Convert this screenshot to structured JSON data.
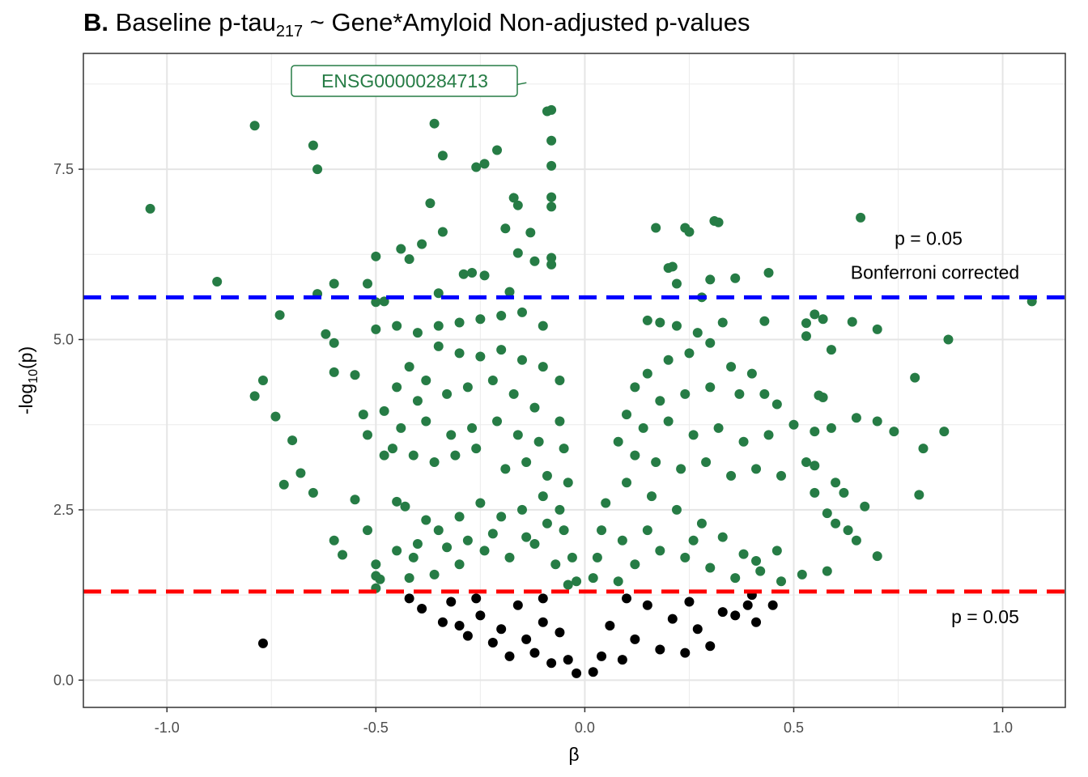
{
  "chart_data": {
    "type": "scatter",
    "title": {
      "prefix": "B.",
      "main": "Baseline p-tau",
      "subscript": "217",
      "rest": " ~ Gene*Amyloid Non-adjusted p-values"
    },
    "xlabel": "β",
    "ylabel": {
      "main": "-log",
      "subscript": "10",
      "rest": "(p)"
    },
    "xlim": [
      -1.2,
      1.15
    ],
    "ylim": [
      -0.4,
      9.2
    ],
    "xticks": [
      -1.0,
      -0.5,
      0.0,
      0.5,
      1.0
    ],
    "xtick_labels": [
      "-1.0",
      "-0.5",
      "0.0",
      "0.5",
      "1.0"
    ],
    "yticks": [
      0.0,
      2.5,
      5.0,
      7.5
    ],
    "ytick_labels": [
      "0.0",
      "2.5",
      "5.0",
      "7.5"
    ],
    "grid": true,
    "colors": {
      "significant": "#267c45",
      "nonsignificant": "#000000",
      "bonferroni_line": "#0000ff",
      "nominal_line": "#ff0000",
      "label_text": "#267c45"
    },
    "reference_lines": [
      {
        "y": 5.62,
        "color": "#0000ff",
        "style": "dashed",
        "label_lines": [
          "p = 0.05",
          "Bonferroni corrected"
        ]
      },
      {
        "y": 1.3,
        "color": "#ff0000",
        "style": "dashed",
        "label_lines": [
          "p = 0.05"
        ]
      }
    ],
    "highlighted_point": {
      "label": "ENSG00000284713",
      "x": -0.13,
      "y": 8.77
    },
    "series": [
      {
        "values": [
          [
            -1.04,
            6.92
          ],
          [
            -0.79,
            8.14
          ],
          [
            -0.88,
            5.85
          ],
          [
            -0.65,
            7.85
          ],
          [
            -0.64,
            7.5
          ],
          [
            -0.36,
            8.17
          ],
          [
            -0.34,
            7.7
          ],
          [
            -0.26,
            7.53
          ],
          [
            -0.24,
            7.58
          ],
          [
            -0.21,
            7.78
          ],
          [
            -0.09,
            8.35
          ],
          [
            -0.08,
            8.37
          ],
          [
            -0.08,
            7.92
          ],
          [
            -0.08,
            7.55
          ],
          [
            -0.17,
            7.08
          ],
          [
            -0.08,
            7.09
          ],
          [
            -0.16,
            6.97
          ],
          [
            -0.37,
            7.0
          ],
          [
            -0.08,
            6.95
          ],
          [
            -0.34,
            6.58
          ],
          [
            -0.19,
            6.63
          ],
          [
            -0.13,
            6.57
          ],
          [
            -0.39,
            6.4
          ],
          [
            -0.44,
            6.33
          ],
          [
            -0.5,
            6.22
          ],
          [
            -0.42,
            6.18
          ],
          [
            -0.16,
            6.27
          ],
          [
            -0.12,
            6.15
          ],
          [
            -0.08,
            6.2
          ],
          [
            -0.08,
            6.1
          ],
          [
            -0.29,
            5.96
          ],
          [
            -0.27,
            5.98
          ],
          [
            -0.24,
            5.94
          ],
          [
            -0.52,
            5.82
          ],
          [
            -0.6,
            5.82
          ],
          [
            -0.64,
            5.67
          ],
          [
            -0.35,
            5.68
          ],
          [
            -0.18,
            5.7
          ],
          [
            -0.5,
            5.55
          ],
          [
            -0.48,
            5.56
          ],
          [
            -0.73,
            5.36
          ],
          [
            0.17,
            6.64
          ],
          [
            0.24,
            6.64
          ],
          [
            0.25,
            6.58
          ],
          [
            0.31,
            6.74
          ],
          [
            0.32,
            6.72
          ],
          [
            0.66,
            6.79
          ],
          [
            0.2,
            6.05
          ],
          [
            0.21,
            6.07
          ],
          [
            0.44,
            5.98
          ],
          [
            0.3,
            5.88
          ],
          [
            0.36,
            5.9
          ],
          [
            0.22,
            5.82
          ],
          [
            0.28,
            5.62
          ],
          [
            1.07,
            5.56
          ],
          [
            -0.77,
            4.4
          ],
          [
            -0.79,
            4.17
          ],
          [
            -0.74,
            3.87
          ],
          [
            -0.6,
            4.52
          ],
          [
            -0.7,
            3.52
          ],
          [
            -0.68,
            3.04
          ],
          [
            -0.72,
            2.87
          ],
          [
            -0.65,
            2.75
          ],
          [
            -0.55,
            2.65
          ],
          [
            -0.52,
            2.2
          ],
          [
            -0.6,
            2.05
          ],
          [
            -0.58,
            1.84
          ],
          [
            -0.5,
            1.53
          ],
          [
            -0.49,
            1.48
          ],
          [
            -0.5,
            1.35
          ],
          [
            -0.41,
            1.8
          ],
          [
            -0.45,
            2.62
          ],
          [
            -0.48,
            3.3
          ],
          [
            -0.53,
            3.9
          ],
          [
            -0.55,
            4.48
          ],
          [
            -0.6,
            4.95
          ],
          [
            -0.62,
            5.08
          ],
          [
            -0.5,
            5.15
          ],
          [
            -0.45,
            5.2
          ],
          [
            -0.4,
            5.1
          ],
          [
            -0.35,
            5.2
          ],
          [
            -0.3,
            5.25
          ],
          [
            -0.25,
            5.3
          ],
          [
            -0.2,
            5.35
          ],
          [
            -0.15,
            5.4
          ],
          [
            -0.1,
            5.2
          ],
          [
            -0.35,
            4.9
          ],
          [
            -0.3,
            4.8
          ],
          [
            -0.25,
            4.75
          ],
          [
            -0.2,
            4.85
          ],
          [
            -0.15,
            4.7
          ],
          [
            -0.1,
            4.6
          ],
          [
            -0.06,
            4.4
          ],
          [
            -0.42,
            4.6
          ],
          [
            -0.38,
            4.4
          ],
          [
            -0.45,
            4.3
          ],
          [
            -0.4,
            4.1
          ],
          [
            -0.33,
            4.2
          ],
          [
            -0.28,
            4.3
          ],
          [
            -0.22,
            4.4
          ],
          [
            -0.17,
            4.2
          ],
          [
            -0.12,
            4.0
          ],
          [
            -0.06,
            3.8
          ],
          [
            -0.48,
            3.95
          ],
          [
            -0.44,
            3.7
          ],
          [
            -0.38,
            3.8
          ],
          [
            -0.32,
            3.6
          ],
          [
            -0.27,
            3.7
          ],
          [
            -0.21,
            3.8
          ],
          [
            -0.16,
            3.6
          ],
          [
            -0.11,
            3.5
          ],
          [
            -0.05,
            3.4
          ],
          [
            -0.52,
            3.6
          ],
          [
            -0.46,
            3.4
          ],
          [
            -0.41,
            3.3
          ],
          [
            -0.36,
            3.2
          ],
          [
            -0.31,
            3.3
          ],
          [
            -0.26,
            3.4
          ],
          [
            -0.19,
            3.1
          ],
          [
            -0.14,
            3.2
          ],
          [
            -0.09,
            3.0
          ],
          [
            -0.04,
            2.9
          ],
          [
            0.15,
            5.28
          ],
          [
            0.18,
            5.25
          ],
          [
            0.22,
            5.2
          ],
          [
            0.27,
            5.1
          ],
          [
            0.33,
            5.25
          ],
          [
            0.43,
            5.27
          ],
          [
            0.53,
            5.24
          ],
          [
            0.55,
            5.37
          ],
          [
            0.57,
            5.3
          ],
          [
            0.64,
            5.26
          ],
          [
            0.7,
            5.15
          ],
          [
            0.87,
            5.0
          ],
          [
            0.53,
            5.05
          ],
          [
            0.59,
            4.85
          ],
          [
            0.3,
            4.95
          ],
          [
            0.25,
            4.8
          ],
          [
            0.2,
            4.7
          ],
          [
            0.35,
            4.6
          ],
          [
            0.4,
            4.5
          ],
          [
            0.15,
            4.5
          ],
          [
            0.12,
            4.3
          ],
          [
            0.18,
            4.1
          ],
          [
            0.24,
            4.2
          ],
          [
            0.3,
            4.3
          ],
          [
            0.37,
            4.2
          ],
          [
            0.43,
            4.2
          ],
          [
            0.56,
            4.18
          ],
          [
            0.57,
            4.15
          ],
          [
            0.79,
            4.44
          ],
          [
            0.46,
            4.05
          ],
          [
            0.1,
            3.9
          ],
          [
            0.14,
            3.7
          ],
          [
            0.2,
            3.8
          ],
          [
            0.26,
            3.6
          ],
          [
            0.32,
            3.7
          ],
          [
            0.38,
            3.5
          ],
          [
            0.44,
            3.6
          ],
          [
            0.5,
            3.75
          ],
          [
            0.55,
            3.65
          ],
          [
            0.59,
            3.7
          ],
          [
            0.65,
            3.85
          ],
          [
            0.7,
            3.8
          ],
          [
            0.74,
            3.65
          ],
          [
            0.86,
            3.65
          ],
          [
            0.81,
            3.4
          ],
          [
            0.08,
            3.5
          ],
          [
            0.12,
            3.3
          ],
          [
            0.17,
            3.2
          ],
          [
            0.23,
            3.1
          ],
          [
            0.29,
            3.2
          ],
          [
            0.35,
            3.0
          ],
          [
            0.41,
            3.1
          ],
          [
            0.47,
            3.0
          ],
          [
            0.53,
            3.2
          ],
          [
            0.55,
            3.15
          ],
          [
            0.6,
            2.9
          ],
          [
            0.55,
            2.75
          ],
          [
            0.62,
            2.75
          ],
          [
            0.67,
            2.55
          ],
          [
            0.8,
            2.72
          ],
          [
            0.58,
            2.45
          ],
          [
            0.6,
            2.3
          ],
          [
            0.63,
            2.2
          ],
          [
            0.65,
            2.05
          ],
          [
            0.7,
            1.82
          ],
          [
            0.58,
            1.6
          ],
          [
            0.52,
            1.55
          ],
          [
            0.47,
            1.45
          ],
          [
            0.42,
            1.6
          ],
          [
            0.38,
            1.85
          ],
          [
            0.33,
            2.1
          ],
          [
            0.28,
            2.3
          ],
          [
            0.22,
            2.5
          ],
          [
            0.16,
            2.7
          ],
          [
            0.1,
            2.9
          ],
          [
            0.05,
            2.6
          ],
          [
            0.04,
            2.2
          ],
          [
            0.03,
            1.8
          ],
          [
            0.02,
            1.5
          ],
          [
            -0.02,
            1.45
          ],
          [
            -0.03,
            1.8
          ],
          [
            -0.05,
            2.2
          ],
          [
            -0.06,
            2.5
          ],
          [
            -0.1,
            2.7
          ],
          [
            -0.15,
            2.5
          ],
          [
            -0.2,
            2.4
          ],
          [
            -0.25,
            2.6
          ],
          [
            -0.3,
            2.4
          ],
          [
            -0.35,
            2.2
          ],
          [
            -0.4,
            2.0
          ],
          [
            -0.45,
            1.9
          ],
          [
            -0.5,
            1.7
          ],
          [
            -0.42,
            1.5
          ],
          [
            -0.36,
            1.55
          ],
          [
            -0.3,
            1.7
          ],
          [
            -0.24,
            1.9
          ],
          [
            -0.18,
            1.8
          ],
          [
            -0.12,
            2.0
          ],
          [
            -0.07,
            1.7
          ],
          [
            -0.04,
            1.4
          ],
          [
            0.08,
            1.45
          ],
          [
            0.12,
            1.7
          ],
          [
            0.18,
            1.9
          ],
          [
            0.24,
            1.8
          ],
          [
            0.3,
            1.65
          ],
          [
            0.36,
            1.5
          ],
          [
            0.41,
            1.75
          ],
          [
            0.46,
            1.9
          ],
          [
            0.26,
            2.05
          ],
          [
            0.15,
            2.2
          ],
          [
            0.09,
            2.05
          ],
          [
            -0.09,
            2.3
          ],
          [
            -0.14,
            2.1
          ],
          [
            -0.22,
            2.15
          ],
          [
            -0.28,
            2.05
          ],
          [
            -0.33,
            1.95
          ],
          [
            -0.38,
            2.35
          ],
          [
            -0.43,
            2.55
          ]
        ]
      }
    ],
    "nonsignificant_series": {
      "values": [
        [
          -0.77,
          0.54
        ],
        [
          -0.42,
          1.2
        ],
        [
          -0.39,
          1.05
        ],
        [
          -0.34,
          0.85
        ],
        [
          -0.3,
          0.8
        ],
        [
          -0.28,
          0.65
        ],
        [
          -0.25,
          0.95
        ],
        [
          -0.22,
          0.55
        ],
        [
          -0.2,
          0.75
        ],
        [
          -0.18,
          0.35
        ],
        [
          -0.16,
          1.1
        ],
        [
          -0.14,
          0.6
        ],
        [
          -0.12,
          0.4
        ],
        [
          -0.1,
          0.85
        ],
        [
          -0.08,
          0.25
        ],
        [
          -0.06,
          0.7
        ],
        [
          -0.04,
          0.3
        ],
        [
          -0.02,
          0.1
        ],
        [
          0.02,
          0.12
        ],
        [
          0.04,
          0.35
        ],
        [
          0.06,
          0.8
        ],
        [
          0.09,
          0.3
        ],
        [
          0.12,
          0.6
        ],
        [
          0.15,
          1.1
        ],
        [
          0.18,
          0.45
        ],
        [
          0.21,
          0.9
        ],
        [
          0.24,
          0.4
        ],
        [
          0.27,
          0.75
        ],
        [
          0.3,
          0.5
        ],
        [
          0.33,
          1.0
        ],
        [
          0.36,
          0.95
        ],
        [
          0.39,
          1.1
        ],
        [
          0.41,
          0.85
        ],
        [
          0.45,
          1.1
        ],
        [
          0.4,
          1.25
        ],
        [
          -0.32,
          1.15
        ],
        [
          -0.26,
          1.2
        ],
        [
          -0.1,
          1.2
        ],
        [
          0.1,
          1.2
        ],
        [
          0.25,
          1.15
        ]
      ]
    }
  }
}
